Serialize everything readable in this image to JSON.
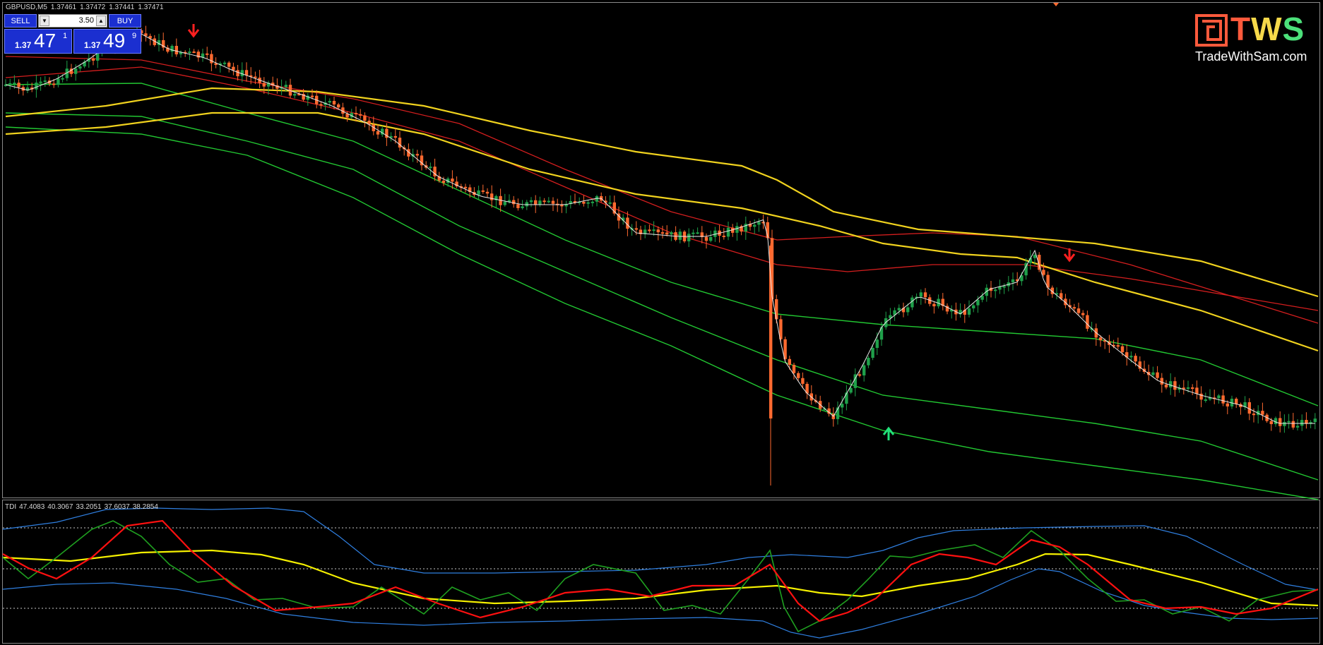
{
  "symbol_line": {
    "symbol": "GBPUSD,M5",
    "open": "1.37461",
    "high": "1.37472",
    "low": "1.37441",
    "close": "1.37471"
  },
  "trade_panel": {
    "sell_label": "SELL",
    "buy_label": "BUY",
    "lot_size": "3.50",
    "bid": {
      "prefix": "1.37",
      "big": "47",
      "sup": "1"
    },
    "ask": {
      "prefix": "1.37",
      "big": "49",
      "sup": "9"
    },
    "color": "#1b2fd0"
  },
  "logo": {
    "letters": [
      "T",
      "W",
      "S"
    ],
    "url": "TradeWithSam.com",
    "colors": [
      "#ff5a3c",
      "#f6d94a",
      "#4ce07a"
    ]
  },
  "indicator": {
    "name": "TDI",
    "values": [
      "47.4083",
      "40.3067",
      "33.2051",
      "37.6037",
      "38.2854"
    ]
  },
  "colors": {
    "bull_candle": "#1fa04a",
    "bear_candle": "#ff6a30",
    "yellow_ma": "#f0d21e",
    "red_band": "#d41e1e",
    "green_band": "#22c832",
    "white_ma": "#e8e8e8",
    "tdi_blue": "#2f7fe0",
    "tdi_green": "#1fa020",
    "tdi_red": "#ff1010",
    "tdi_yellow": "#f5f000",
    "signal_up": "#22e07a",
    "signal_down": "#ff2020"
  }
}
